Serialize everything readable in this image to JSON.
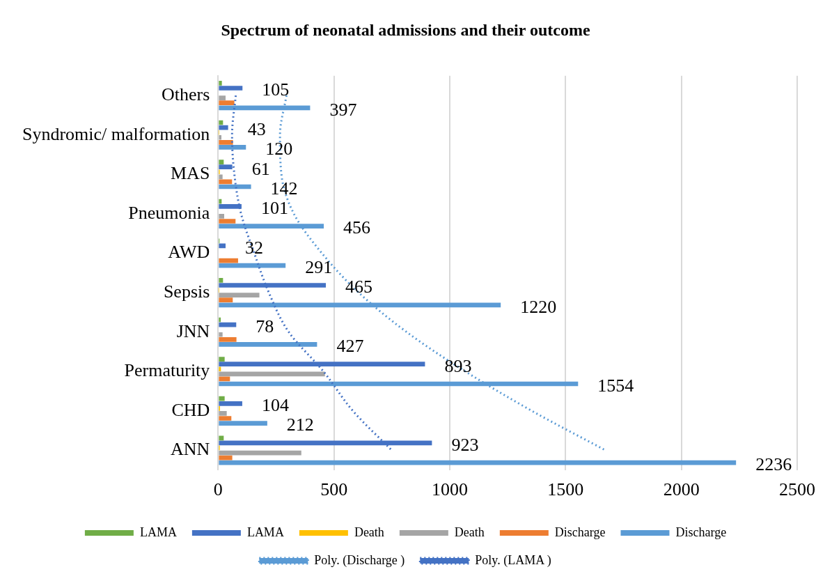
{
  "chart_data": {
    "type": "bar",
    "orientation": "horizontal",
    "title": "Spectrum of neonatal admissions and their outcome",
    "categories": [
      "Others",
      "Syndromic/ malformation",
      "MAS",
      "Pneumonia",
      "AWD",
      "Sepsis",
      "JNN",
      "Permaturity",
      "CHD",
      "ANN"
    ],
    "series": [
      {
        "name": "LAMA",
        "color": "#70ad47",
        "values": [
          16,
          21,
          24,
          15,
          6,
          21,
          11,
          28,
          28,
          24
        ]
      },
      {
        "name": "LAMA",
        "color": "#4472c4",
        "values": [
          105,
          43,
          61,
          101,
          32,
          465,
          78,
          893,
          104,
          923
        ],
        "value_labels": [
          "105",
          "43",
          "61",
          "101",
          "32",
          "465",
          "78",
          "893",
          "104",
          "923"
        ]
      },
      {
        "name": "Death",
        "color": "#ffc000",
        "values": [
          3,
          5,
          7,
          3,
          null,
          5,
          null,
          12,
          8,
          7
        ]
      },
      {
        "name": "Death",
        "color": "#a5a5a5",
        "values": [
          32,
          14,
          19,
          26,
          3,
          178,
          19,
          461,
          37,
          359
        ]
      },
      {
        "name": "Discharge",
        "color": "#ed7d31",
        "values": [
          70,
          64,
          60,
          75,
          86,
          63,
          79,
          51,
          57,
          61
        ]
      },
      {
        "name": "Discharge",
        "color": "#5b9bd5",
        "values": [
          397,
          120,
          142,
          456,
          291,
          1220,
          427,
          1554,
          212,
          2236
        ],
        "value_labels": [
          "397",
          "120",
          "142",
          "456",
          "291",
          "1220",
          "427",
          "1554",
          "212",
          "2236"
        ]
      },
      {
        "name": "Poly. (Discharge )",
        "type": "line",
        "color": "#5b9bd5",
        "line_style": "dotted",
        "marker": "none",
        "values": [
          295,
          267,
          273,
          327,
          448,
          607,
          814,
          1068,
          1355,
          1673
        ]
      },
      {
        "name": "Poly. (LAMA )",
        "type": "line",
        "color": "#4472c4",
        "line_style": "dotted",
        "marker": "none",
        "values": [
          76,
          60,
          70,
          99,
          156,
          219,
          305,
          455,
          582,
          750
        ]
      }
    ],
    "xlim": [
      0,
      2500
    ],
    "xticks": [
      0,
      500,
      1000,
      1500,
      2000,
      2500
    ],
    "grid": "x",
    "legend": "bottom"
  }
}
